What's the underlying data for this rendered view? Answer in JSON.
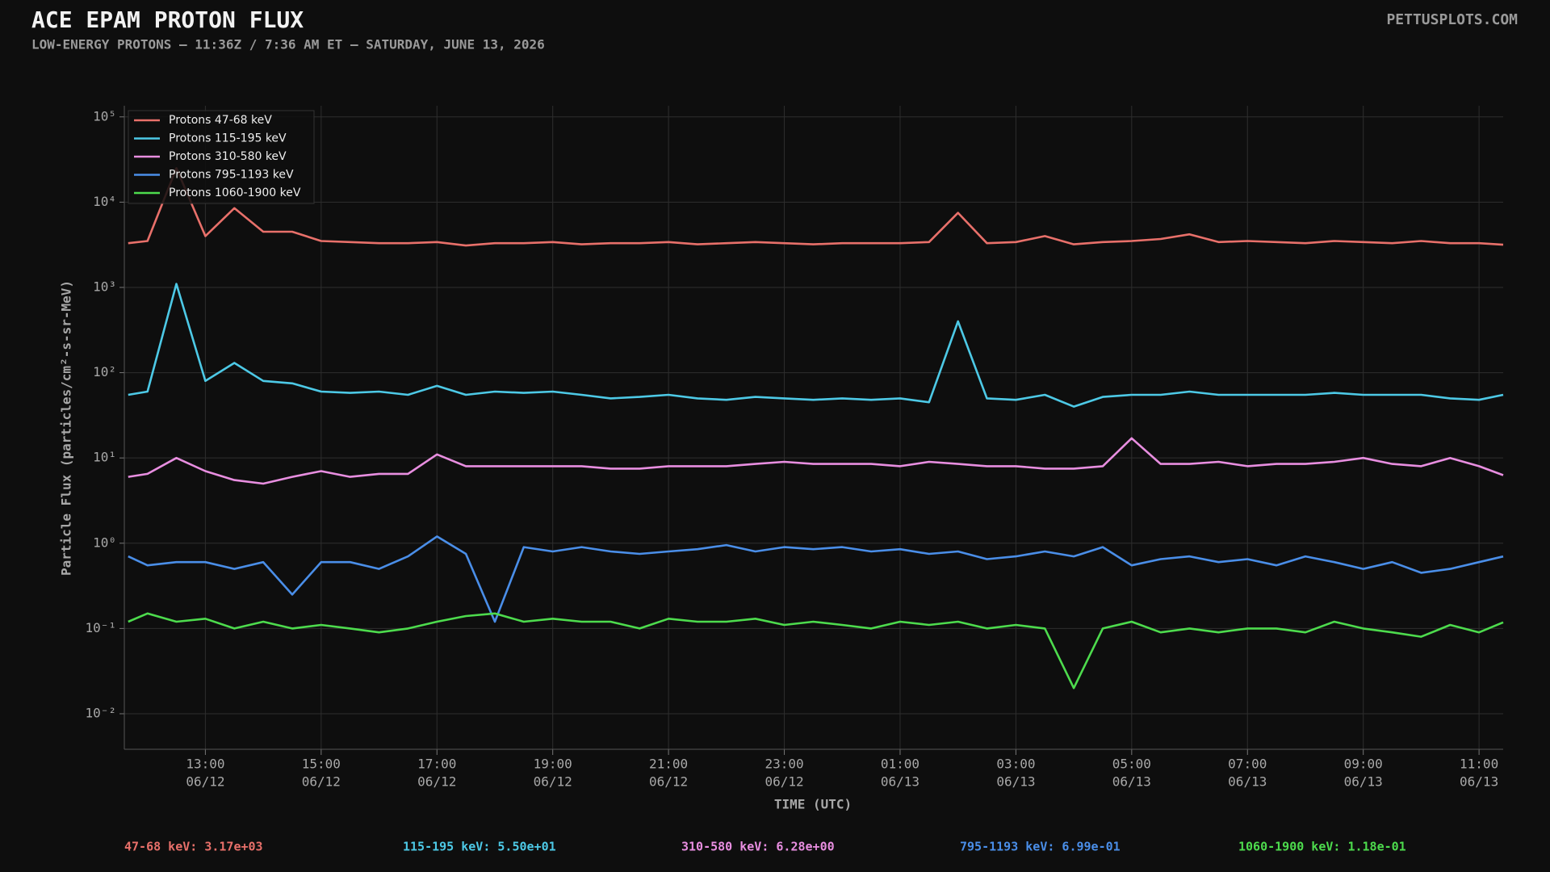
{
  "chart_data": {
    "type": "line",
    "title": "ACE EPAM PROTON FLUX",
    "subtitle": "LOW-ENERGY PROTONS — 11:36Z / 7:36 AM ET — SATURDAY, JUNE 13, 2026",
    "source": "PETTUSPLOTS.COM",
    "xlabel": "TIME (UTC)",
    "ylabel": "Particle Flux (particles/cm²-s-sr-MeV)",
    "yscale": "log",
    "grid": true,
    "legend": "upper left",
    "xlim": [
      "06/12 11:36",
      "06/13 11:25"
    ],
    "ylim": [
      0.00383,
      135000
    ],
    "yticks": [
      {
        "value": 0.01,
        "label": "10⁻²"
      },
      {
        "value": 0.1,
        "label": "10⁻¹"
      },
      {
        "value": 1,
        "label": "10⁰"
      },
      {
        "value": 10,
        "label": "10¹"
      },
      {
        "value": 100,
        "label": "10²"
      },
      {
        "value": 1000,
        "label": "10³"
      },
      {
        "value": 10000,
        "label": "10⁴"
      },
      {
        "value": 100000,
        "label": "10⁵"
      }
    ],
    "xticks": [
      {
        "value": "06/12 13:00",
        "label": [
          "13:00",
          "06/12"
        ]
      },
      {
        "value": "06/12 15:00",
        "label": [
          "15:00",
          "06/12"
        ]
      },
      {
        "value": "06/12 17:00",
        "label": [
          "17:00",
          "06/12"
        ]
      },
      {
        "value": "06/12 19:00",
        "label": [
          "19:00",
          "06/12"
        ]
      },
      {
        "value": "06/12 21:00",
        "label": [
          "21:00",
          "06/12"
        ]
      },
      {
        "value": "06/12 23:00",
        "label": [
          "23:00",
          "06/12"
        ]
      },
      {
        "value": "06/13 01:00",
        "label": [
          "01:00",
          "06/13"
        ]
      },
      {
        "value": "06/13 03:00",
        "label": [
          "03:00",
          "06/13"
        ]
      },
      {
        "value": "06/13 05:00",
        "label": [
          "05:00",
          "06/13"
        ]
      },
      {
        "value": "06/13 07:00",
        "label": [
          "07:00",
          "06/13"
        ]
      },
      {
        "value": "06/13 09:00",
        "label": [
          "09:00",
          "06/13"
        ]
      },
      {
        "value": "06/13 11:00",
        "label": [
          "11:00",
          "06/13"
        ]
      }
    ],
    "x": [
      "06/12 11:40",
      "06/12 12:00",
      "06/12 12:30",
      "06/12 13:00",
      "06/12 13:30",
      "06/12 14:00",
      "06/12 14:30",
      "06/12 15:00",
      "06/12 15:30",
      "06/12 16:00",
      "06/12 16:30",
      "06/12 17:00",
      "06/12 17:30",
      "06/12 18:00",
      "06/12 18:30",
      "06/12 19:00",
      "06/12 19:30",
      "06/12 20:00",
      "06/12 20:30",
      "06/12 21:00",
      "06/12 21:30",
      "06/12 22:00",
      "06/12 22:30",
      "06/12 23:00",
      "06/12 23:30",
      "06/13 00:00",
      "06/13 00:30",
      "06/13 01:00",
      "06/13 01:30",
      "06/13 02:00",
      "06/13 02:30",
      "06/13 03:00",
      "06/13 03:30",
      "06/13 04:00",
      "06/13 04:30",
      "06/13 05:00",
      "06/13 05:30",
      "06/13 06:00",
      "06/13 06:30",
      "06/13 07:00",
      "06/13 07:30",
      "06/13 08:00",
      "06/13 08:30",
      "06/13 09:00",
      "06/13 09:30",
      "06/13 10:00",
      "06/13 10:30",
      "06/13 11:00",
      "06/13 11:25"
    ],
    "series": [
      {
        "name": "Protons 47-68 keV",
        "color": "#e8706a",
        "values": [
          3300,
          3500,
          25000,
          4000,
          8500,
          4500,
          4500,
          3500,
          3400,
          3300,
          3300,
          3400,
          3100,
          3300,
          3300,
          3400,
          3200,
          3300,
          3300,
          3400,
          3200,
          3300,
          3400,
          3300,
          3200,
          3300,
          3300,
          3300,
          3400,
          7500,
          3300,
          3400,
          4000,
          3200,
          3400,
          3500,
          3700,
          4200,
          3400,
          3500,
          3400,
          3300,
          3500,
          3400,
          3300,
          3500,
          3300,
          3300,
          3170
        ]
      },
      {
        "name": "Protons 115-195 keV",
        "color": "#4dc9e6",
        "values": [
          55,
          60,
          1100,
          80,
          130,
          80,
          75,
          60,
          58,
          60,
          55,
          70,
          55,
          60,
          58,
          60,
          55,
          50,
          52,
          55,
          50,
          48,
          52,
          50,
          48,
          50,
          48,
          50,
          45,
          400,
          50,
          48,
          55,
          40,
          52,
          55,
          55,
          60,
          55,
          55,
          55,
          55,
          58,
          55,
          55,
          55,
          50,
          48,
          55
        ]
      },
      {
        "name": "Protons 310-580 keV",
        "color": "#e88ee0",
        "values": [
          6,
          6.5,
          10,
          7,
          5.5,
          5,
          6,
          7,
          6,
          6.5,
          6.5,
          11,
          8,
          8,
          8,
          8,
          8,
          7.5,
          7.5,
          8,
          8,
          8,
          8.5,
          9,
          8.5,
          8.5,
          8.5,
          8,
          9,
          8.5,
          8,
          8,
          7.5,
          7.5,
          8,
          17,
          8.5,
          8.5,
          9,
          8,
          8.5,
          8.5,
          9,
          10,
          8.5,
          8,
          10,
          8,
          6.28
        ]
      },
      {
        "name": "Protons 795-1193 keV",
        "color": "#4a8ee8",
        "values": [
          0.7,
          0.55,
          0.6,
          0.6,
          0.5,
          0.6,
          0.25,
          0.6,
          0.6,
          0.5,
          0.7,
          1.2,
          0.75,
          0.12,
          0.9,
          0.8,
          0.9,
          0.8,
          0.75,
          0.8,
          0.85,
          0.95,
          0.8,
          0.9,
          0.85,
          0.9,
          0.8,
          0.85,
          0.75,
          0.8,
          0.65,
          0.7,
          0.8,
          0.7,
          0.9,
          0.55,
          0.65,
          0.7,
          0.6,
          0.65,
          0.55,
          0.7,
          0.6,
          0.5,
          0.6,
          0.45,
          0.5,
          0.6,
          0.699
        ]
      },
      {
        "name": "Protons 1060-1900 keV",
        "color": "#4ddb4d",
        "values": [
          0.12,
          0.15,
          0.12,
          0.13,
          0.1,
          0.12,
          0.1,
          0.11,
          0.1,
          0.09,
          0.1,
          0.12,
          0.14,
          0.15,
          0.12,
          0.13,
          0.12,
          0.12,
          0.1,
          0.13,
          0.12,
          0.12,
          0.13,
          0.11,
          0.12,
          0.11,
          0.1,
          0.12,
          0.11,
          0.12,
          0.1,
          0.11,
          0.1,
          0.02,
          0.1,
          0.12,
          0.09,
          0.1,
          0.09,
          0.1,
          0.1,
          0.09,
          0.12,
          0.1,
          0.09,
          0.08,
          0.11,
          0.09,
          0.118
        ]
      }
    ],
    "readouts": [
      "47-68 keV: 3.17e+03",
      "115-195 keV: 5.50e+01",
      "310-580 keV: 6.28e+00",
      "795-1193 keV: 6.99e-01",
      "1060-1900 keV: 1.18e-01"
    ]
  }
}
